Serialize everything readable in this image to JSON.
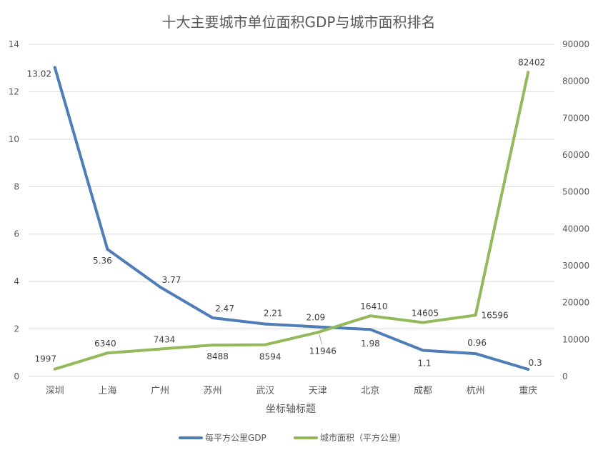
{
  "chart_data": {
    "type": "line",
    "title": "十大主要城市单位面积GDP与城市面积排名",
    "xlabel": "坐标轴标题",
    "ylabel": "",
    "ylabel_right": "",
    "categories": [
      "深圳",
      "上海",
      "广州",
      "苏州",
      "武汉",
      "天津",
      "北京",
      "成都",
      "杭州",
      "重庆"
    ],
    "ylim": [
      0,
      14
    ],
    "y_ticks": [
      0,
      2,
      4,
      6,
      8,
      10,
      12,
      14
    ],
    "ylim_right": [
      0,
      90000
    ],
    "y_ticks_right": [
      0,
      10000,
      20000,
      30000,
      40000,
      50000,
      60000,
      70000,
      80000,
      90000
    ],
    "grid": true,
    "legend": "bottom",
    "series": [
      {
        "name": "每平方公里GDP",
        "axis": "left",
        "color": "#4e7db8",
        "values": [
          13.02,
          5.36,
          3.77,
          2.47,
          2.21,
          2.09,
          1.98,
          1.1,
          0.96,
          0.3
        ],
        "labels": [
          "13.02",
          "5.36",
          "3.77",
          "2.47",
          "2.21",
          "2.09",
          "1.98",
          "1.1",
          "0.96",
          "0.3"
        ]
      },
      {
        "name": "城市面积（平方公里）",
        "axis": "right",
        "color": "#93b95a",
        "values": [
          1997,
          6340,
          7434,
          8488,
          8594,
          11946,
          16410,
          14605,
          16596,
          82402
        ],
        "labels": [
          "1997",
          "6340",
          "7434",
          "8488",
          "8594",
          "11946",
          "16410",
          "14605",
          "16596",
          "82402"
        ]
      }
    ]
  }
}
